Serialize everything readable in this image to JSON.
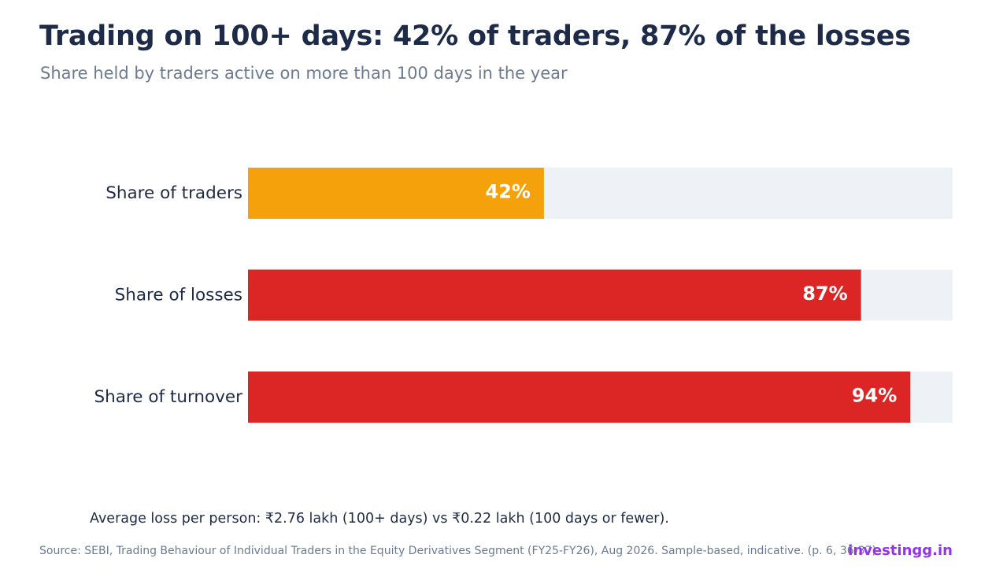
{
  "chart_data": {
    "type": "bar",
    "orientation": "horizontal",
    "title": "Trading on 100+ days: 42% of traders, 87% of the losses",
    "subtitle": "Share held by traders active on more than 100 days in the year",
    "categories": [
      "Share of traders",
      "Share of losses",
      "Share of turnover"
    ],
    "values": [
      42,
      87,
      94
    ],
    "value_labels": [
      "42%",
      "87%",
      "94%"
    ],
    "bar_colors": [
      "#f4a10c",
      "#dc2626",
      "#dc2626"
    ],
    "track_color": "#eef1f5",
    "xlim": [
      0,
      100
    ],
    "grid": false,
    "legend": "none"
  },
  "note": "Average loss per person: ₹2.76 lakh (100+ days) vs ₹0.22 lakh (100 days or fewer).",
  "source": "Source: SEBI, Trading Behaviour of Individual Traders in the Equity Derivatives Segment (FY25-FY26), Aug 2026. Sample-based, indicative. (p. 6, 36-37)",
  "brand": "investingg.in"
}
